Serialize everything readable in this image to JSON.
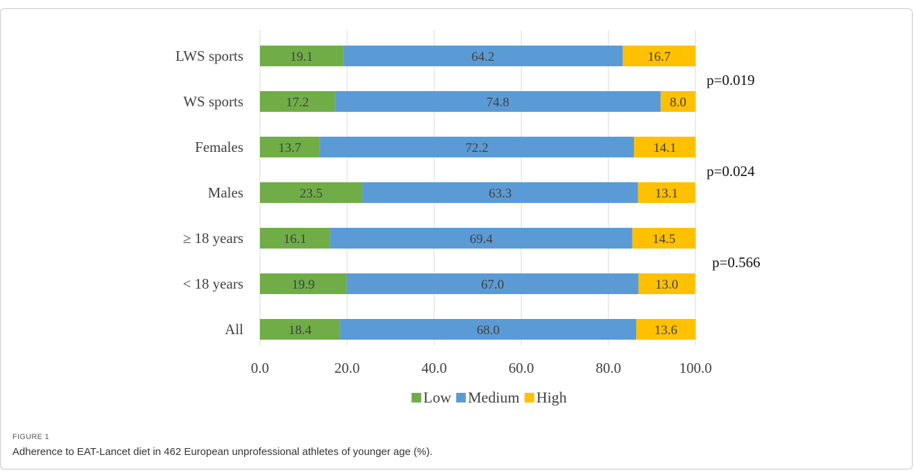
{
  "figure": {
    "label": "FIGURE 1",
    "caption": "Adherence to EAT-Lancet diet in 462 European unprofessional athletes of younger age (%)."
  },
  "chart_data": {
    "type": "bar",
    "orientation": "horizontal",
    "stacked": true,
    "categories": [
      "LWS sports",
      "WS sports",
      "Females",
      "Males",
      "≥ 18 years",
      "< 18 years",
      "All"
    ],
    "series": [
      {
        "name": "Low",
        "color": "#70ad47",
        "values": [
          19.1,
          17.2,
          13.7,
          23.5,
          16.1,
          19.9,
          18.4
        ]
      },
      {
        "name": "Medium",
        "color": "#5b9bd5",
        "values": [
          64.2,
          74.8,
          72.2,
          63.3,
          69.4,
          67.0,
          68.0
        ]
      },
      {
        "name": "High",
        "color": "#ffc000",
        "values": [
          16.7,
          8.0,
          14.1,
          13.1,
          14.5,
          13.0,
          13.6
        ]
      }
    ],
    "xlim": [
      0,
      100
    ],
    "xticks": [
      "0.0",
      "20.0",
      "40.0",
      "60.0",
      "80.0",
      "100.0"
    ],
    "grid": true,
    "legend_position": "bottom",
    "annotations": [
      {
        "text": "p=0.019",
        "between": [
          "LWS sports",
          "WS sports"
        ]
      },
      {
        "text": "p=0.024",
        "between": [
          "Females",
          "Males"
        ]
      },
      {
        "text": "p=0.566",
        "between": [
          "≥ 18 years",
          "< 18 years"
        ]
      }
    ]
  }
}
